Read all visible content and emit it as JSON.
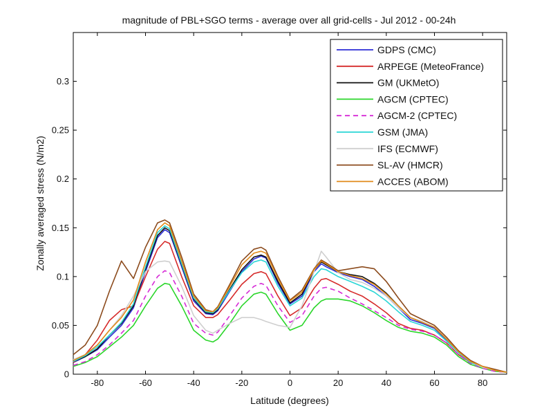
{
  "chart_data": {
    "type": "line",
    "title": "magnitude of PBL+SGO terms - average over all grid-cells - Jul 2012 - 00-24h",
    "xlabel": "Latitude (degrees)",
    "ylabel": "Zonally averaged stress (N/m2)",
    "xlim": [
      -90,
      90
    ],
    "ylim": [
      0,
      0.35
    ],
    "xticks": [
      -80,
      -60,
      -40,
      -20,
      0,
      20,
      40,
      60,
      80
    ],
    "yticks": [
      0,
      0.05,
      0.1,
      0.15,
      0.2,
      0.25,
      0.3
    ],
    "xtick_labels": [
      "-80",
      "-60",
      "-40",
      "-20",
      "0",
      "20",
      "40",
      "60",
      "80"
    ],
    "ytick_labels": [
      "0",
      "0.05",
      "0.1",
      "0.15",
      "0.2",
      "0.25",
      "0.3"
    ],
    "grid": false,
    "legend_position": "top-right",
    "x": [
      -90,
      -85,
      -80,
      -75,
      -70,
      -65,
      -60,
      -55,
      -52,
      -50,
      -45,
      -40,
      -35,
      -32,
      -30,
      -25,
      -20,
      -15,
      -12,
      -10,
      -5,
      0,
      5,
      10,
      13,
      15,
      20,
      25,
      30,
      35,
      40,
      45,
      50,
      55,
      60,
      65,
      70,
      75,
      80,
      85,
      90
    ],
    "series": [
      {
        "name": "GDPS (CMC)",
        "color": "#2b2bd6",
        "dash": "",
        "values": [
          0.012,
          0.018,
          0.025,
          0.038,
          0.05,
          0.068,
          0.105,
          0.14,
          0.148,
          0.145,
          0.11,
          0.075,
          0.062,
          0.061,
          0.065,
          0.085,
          0.105,
          0.118,
          0.121,
          0.119,
          0.093,
          0.072,
          0.08,
          0.105,
          0.113,
          0.11,
          0.104,
          0.1,
          0.097,
          0.09,
          0.08,
          0.068,
          0.056,
          0.052,
          0.047,
          0.035,
          0.022,
          0.012,
          0.007,
          0.004,
          0.002
        ]
      },
      {
        "name": "ARPEGE (MeteoFrance)",
        "color": "#d62a2a",
        "dash": "",
        "values": [
          0.012,
          0.02,
          0.035,
          0.055,
          0.066,
          0.07,
          0.1,
          0.128,
          0.136,
          0.134,
          0.1,
          0.07,
          0.058,
          0.058,
          0.061,
          0.076,
          0.092,
          0.103,
          0.105,
          0.103,
          0.08,
          0.06,
          0.068,
          0.088,
          0.097,
          0.098,
          0.092,
          0.085,
          0.08,
          0.072,
          0.063,
          0.052,
          0.047,
          0.045,
          0.04,
          0.032,
          0.02,
          0.012,
          0.007,
          0.004,
          0.002
        ]
      },
      {
        "name": "GM (UKMetO)",
        "color": "#111111",
        "dash": "",
        "values": [
          0.013,
          0.018,
          0.026,
          0.04,
          0.052,
          0.07,
          0.108,
          0.142,
          0.15,
          0.147,
          0.112,
          0.077,
          0.063,
          0.062,
          0.066,
          0.087,
          0.107,
          0.12,
          0.122,
          0.12,
          0.095,
          0.073,
          0.082,
          0.107,
          0.115,
          0.112,
          0.105,
          0.102,
          0.1,
          0.093,
          0.083,
          0.07,
          0.058,
          0.053,
          0.048,
          0.036,
          0.023,
          0.013,
          0.007,
          0.004,
          0.002
        ]
      },
      {
        "name": "AGCM (CPTEC)",
        "color": "#2ad62a",
        "dash": "",
        "values": [
          0.008,
          0.012,
          0.018,
          0.028,
          0.038,
          0.05,
          0.07,
          0.088,
          0.093,
          0.092,
          0.07,
          0.045,
          0.035,
          0.033,
          0.036,
          0.052,
          0.07,
          0.082,
          0.084,
          0.082,
          0.062,
          0.045,
          0.05,
          0.068,
          0.075,
          0.077,
          0.077,
          0.075,
          0.07,
          0.063,
          0.055,
          0.048,
          0.044,
          0.042,
          0.038,
          0.03,
          0.018,
          0.01,
          0.006,
          0.003,
          0.002
        ]
      },
      {
        "name": "AGCM-2 (CPTEC)",
        "color": "#d62ad6",
        "dash": "7 5",
        "values": [
          0.009,
          0.013,
          0.02,
          0.03,
          0.042,
          0.055,
          0.08,
          0.1,
          0.106,
          0.104,
          0.08,
          0.052,
          0.042,
          0.04,
          0.043,
          0.06,
          0.078,
          0.09,
          0.093,
          0.091,
          0.07,
          0.053,
          0.06,
          0.08,
          0.088,
          0.089,
          0.085,
          0.078,
          0.072,
          0.065,
          0.058,
          0.05,
          0.046,
          0.044,
          0.04,
          0.032,
          0.02,
          0.011,
          0.006,
          0.003,
          0.002
        ]
      },
      {
        "name": "GSM (JMA)",
        "color": "#2ad6d6",
        "dash": "",
        "values": [
          0.013,
          0.019,
          0.028,
          0.04,
          0.053,
          0.072,
          0.11,
          0.145,
          0.152,
          0.149,
          0.113,
          0.078,
          0.064,
          0.063,
          0.067,
          0.086,
          0.104,
          0.115,
          0.117,
          0.115,
          0.09,
          0.07,
          0.078,
          0.1,
          0.108,
          0.107,
          0.1,
          0.095,
          0.09,
          0.084,
          0.075,
          0.064,
          0.054,
          0.05,
          0.045,
          0.034,
          0.022,
          0.012,
          0.007,
          0.004,
          0.002
        ]
      },
      {
        "name": "IFS (ECMWF)",
        "color": "#cfcfcf",
        "dash": "",
        "values": [
          0.015,
          0.02,
          0.03,
          0.045,
          0.06,
          0.08,
          0.105,
          0.115,
          0.116,
          0.115,
          0.09,
          0.06,
          0.045,
          0.042,
          0.045,
          0.052,
          0.058,
          0.058,
          0.056,
          0.054,
          0.05,
          0.048,
          0.07,
          0.105,
          0.126,
          0.12,
          0.104,
          0.097,
          0.094,
          0.088,
          0.08,
          0.068,
          0.058,
          0.054,
          0.048,
          0.036,
          0.023,
          0.013,
          0.007,
          0.004,
          0.002
        ]
      },
      {
        "name": "SL-AV (HMCR)",
        "color": "#8b4a1c",
        "dash": "",
        "values": [
          0.02,
          0.03,
          0.05,
          0.085,
          0.116,
          0.098,
          0.13,
          0.155,
          0.158,
          0.155,
          0.12,
          0.082,
          0.066,
          0.064,
          0.069,
          0.092,
          0.116,
          0.128,
          0.13,
          0.127,
          0.1,
          0.076,
          0.086,
          0.108,
          0.117,
          0.114,
          0.106,
          0.108,
          0.11,
          0.108,
          0.095,
          0.078,
          0.062,
          0.056,
          0.05,
          0.038,
          0.024,
          0.014,
          0.008,
          0.005,
          0.002
        ]
      },
      {
        "name": "ACCES (ABOM)",
        "color": "#e08a1a",
        "dash": "",
        "values": [
          0.014,
          0.02,
          0.03,
          0.045,
          0.058,
          0.076,
          0.115,
          0.148,
          0.155,
          0.152,
          0.116,
          0.08,
          0.065,
          0.064,
          0.068,
          0.09,
          0.112,
          0.124,
          0.126,
          0.124,
          0.098,
          0.075,
          0.084,
          0.107,
          0.116,
          0.113,
          0.105,
          0.101,
          0.098,
          0.092,
          0.082,
          0.07,
          0.058,
          0.053,
          0.048,
          0.036,
          0.023,
          0.013,
          0.008,
          0.004,
          0.002
        ]
      }
    ]
  }
}
